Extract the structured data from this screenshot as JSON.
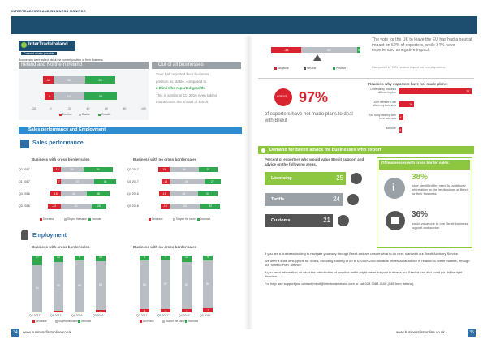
{
  "header": {
    "title": "INTERTRADEIRELAND BUSINESS MONITOR"
  },
  "left": {
    "logo_text": "InterTradeIreland",
    "logo_tag": "Connect what's possible",
    "question": "Businesses were asked about the current position of their business",
    "ioi_heading": "Ireland and Northern Ireland",
    "ooa_heading": "Out of all businesses",
    "ioi_bars": [
      {
        "values": [
          "-11",
          "35",
          "33"
        ]
      },
      {
        "values": [
          "-9",
          "34",
          "36"
        ]
      }
    ],
    "ioi_axis": [
      "-20",
      "0",
      "20",
      "40",
      "60",
      "80",
      "100"
    ],
    "ioi_legend": [
      "Decline",
      "Stable",
      "Growth"
    ],
    "ooa_text1": "Over half reported their business",
    "ooa_text2": "position as stable, compared to",
    "ooa_text3": "a third who reported growth.",
    "ooa_text4": "This is similar to Q2 2016 even taking",
    "ooa_text5": "into account the impact of Brexit.",
    "section_title": "Sales performance and Employment",
    "sales": {
      "title": "Sales performance",
      "cross_title": "Business with cross border sales",
      "nocross_title": "Business with no cross border sales",
      "cross_rows": [
        {
          "label": "Q2 2017",
          "values": [
            "-13",
            "38",
            "50"
          ]
        },
        {
          "label": "Q1 2017",
          "values": [
            "-7",
            "57",
            "36"
          ]
        },
        {
          "label": "Q4 2016",
          "values": [
            "-18",
            "44",
            "38"
          ]
        },
        {
          "label": "Q3 2016",
          "values": [
            "-22",
            "52",
            "25"
          ]
        }
      ],
      "nocross_rows": [
        {
          "label": "Q2 2017",
          "values": [
            "-19",
            "50",
            "31"
          ]
        },
        {
          "label": "Q1 2017",
          "values": [
            "-14",
            "59",
            "27"
          ]
        },
        {
          "label": "Q4 2016",
          "values": [
            "-18",
            "48",
            "33"
          ]
        },
        {
          "label": "Q3 2016",
          "values": [
            "-15",
            "53",
            "32"
          ]
        }
      ],
      "legend": [
        "Decrease",
        "Stayed the same",
        "Increase"
      ]
    },
    "employment": {
      "title": "Employment",
      "cross_title": "Business with cross border sales",
      "nocross_title": "Business with no cross border sales",
      "cross_cols": [
        {
          "label": "Q2 2017",
          "values": [
            "17",
            "81",
            "-1"
          ]
        },
        {
          "label": "Q1 2017",
          "values": [
            "12",
            "85",
            "-3"
          ]
        },
        {
          "label": "Q4 2016",
          "values": [
            "9",
            "89",
            "-2"
          ]
        },
        {
          "label": "Q3 2016",
          "values": [
            "10",
            "85",
            "-5"
          ]
        }
      ],
      "nocross_cols": [
        {
          "label": "Q2 2017",
          "values": [
            "8",
            "86",
            "-6"
          ]
        },
        {
          "label": "Q1 2017",
          "values": [
            "7",
            "87",
            "-6"
          ]
        },
        {
          "label": "Q4 2016",
          "values": [
            "12",
            "82",
            "-5"
          ]
        },
        {
          "label": "Q3 2016",
          "values": [
            "9",
            "84",
            "-7"
          ]
        }
      ],
      "legend": [
        "Decrease",
        "Stayed the same",
        "Increase"
      ]
    },
    "footer_url": "www.businessfirstonline.co.uk",
    "page_number": "34"
  },
  "right": {
    "vote_text": "The vote for the UK to leave the EU has had a neutral impact on 62% of exporters, while 34% have experienced a negative impact.",
    "vote_text2": "Compared to 76% neutral impact on non-exporters.",
    "scale_labels": [
      "-34",
      "62",
      "4"
    ],
    "scale_legend": [
      "Negative",
      "Neutral",
      "Positive"
    ],
    "reasons_title": "Reasons why exporters have not made plans:",
    "reasons": [
      {
        "label": "Uncertainty makes it difficult to plan",
        "value": "77"
      },
      {
        "label": "Don't believe it will affect my business",
        "value": "16"
      },
      {
        "label": "Too busy dealing with here and now",
        "value": "4"
      },
      {
        "label": "Not sure",
        "value": "3"
      }
    ],
    "brexit_badge": "BREXIT",
    "pct97": "97%",
    "pct97_text": "of exporters have not made plans to deal with Brexit",
    "demand_title": "Demand for Brexit advice for businesses who export",
    "demand_intro": "Percent of exporters who would value Brexit support and advice on the following areas.",
    "areas": [
      {
        "label": "Licensing",
        "value": "25"
      },
      {
        "label": "Tariffs",
        "value": "24"
      },
      {
        "label": "Customs",
        "value": "21"
      }
    ],
    "of_businesses": "Of businesses with cross border sales:",
    "stat38": "38%",
    "stat38_text": "have identified the need for additional information on the implications of Brexit for their business.",
    "stat36": "36%",
    "stat36_text": "would value one to one Brexit business support and advice.",
    "para1": "If you are a business looking to navigate your way through Brexit and are unsure what to do next, start with our Brexit Advisory Service.",
    "para2": "We offer a suite of supports for SMEs, including funding of up to £2000/€2000 towards professional advice in relation to Brexit matters, through our 'Start to Plan' Service.",
    "para3": "If you need information on what the introduction of possible tariffs might mean for your business our Service can also point you in the right direction.",
    "para4": "For help and support just contact brexit@intertradeireland.com or call 028 3083 4100 (048 from Ireland).",
    "footer_url": "www.businessfirstonline.co.uk",
    "page_number": "35"
  },
  "colors": {
    "decline": "#d9232e",
    "stable": "#b9bec4",
    "growth": "#2fa84f",
    "blue": "#2f6fa3",
    "green": "#8dc63f",
    "navy": "#1d4e70"
  }
}
